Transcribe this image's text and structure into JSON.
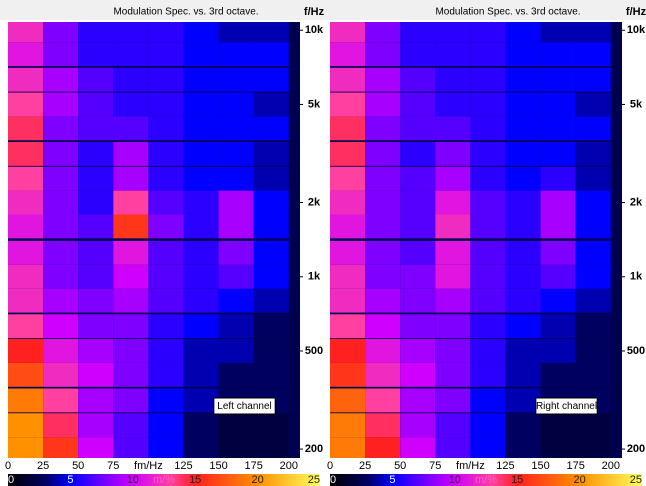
{
  "chart_data": [
    {
      "type": "heatmap",
      "title": "Modulation Spec. vs. 3rd octave.",
      "ylabel": "f/Hz",
      "xlabel": "fm/Hz",
      "annotation": "Left channel",
      "xlim": [
        0,
        208
      ],
      "xticks": [
        0,
        25,
        50,
        75,
        125,
        150,
        175,
        200
      ],
      "ylim": [
        184,
        10800
      ],
      "yscale": "log",
      "yticks": [
        {
          "value": 10000,
          "label": "10k"
        },
        {
          "value": 5000,
          "label": "5k"
        },
        {
          "value": 2000,
          "label": "2k"
        },
        {
          "value": 1000,
          "label": "1k"
        },
        {
          "value": 500,
          "label": "500"
        },
        {
          "value": 200,
          "label": "200"
        }
      ],
      "clim": [
        0,
        25
      ],
      "cticks": [
        0,
        5,
        10,
        15,
        20,
        25
      ],
      "clabel": "m/%",
      "x": [
        12.5,
        37.5,
        62.5,
        87.5,
        112.5,
        137.5,
        162.5,
        187.5
      ],
      "y": [
        200,
        250,
        315,
        400,
        500,
        630,
        800,
        1000,
        1250,
        1600,
        2000,
        2500,
        3150,
        4000,
        5000,
        6300,
        8000,
        10000
      ],
      "z": [
        [
          20,
          16,
          10,
          7,
          5,
          3,
          2,
          2
        ],
        [
          20,
          14,
          9,
          7,
          5,
          3,
          2,
          2
        ],
        [
          19,
          13,
          9,
          8,
          5,
          4,
          3,
          3
        ],
        [
          17,
          12,
          10,
          8,
          6,
          4,
          3,
          3
        ],
        [
          15,
          11,
          9,
          8,
          6,
          4,
          4,
          3
        ],
        [
          13,
          10,
          8,
          8,
          6,
          5,
          4,
          3
        ],
        [
          12,
          9,
          8,
          9,
          7,
          6,
          5,
          4
        ],
        [
          12,
          8,
          7,
          10,
          7,
          6,
          7,
          5
        ],
        [
          11,
          8,
          7,
          11,
          7,
          6,
          8,
          5
        ],
        [
          11,
          8,
          7,
          16,
          8,
          6,
          9,
          5
        ],
        [
          12,
          8,
          6,
          13,
          7,
          6,
          9,
          5
        ],
        [
          13,
          8,
          6,
          9,
          6,
          5,
          5,
          4
        ],
        [
          14,
          8,
          6,
          9,
          6,
          5,
          5,
          4
        ],
        [
          14,
          8,
          7,
          7,
          6,
          5,
          5,
          5
        ],
        [
          13,
          9,
          7,
          6,
          6,
          5,
          5,
          4
        ],
        [
          12,
          9,
          7,
          6,
          6,
          5,
          5,
          5
        ],
        [
          11,
          8,
          6,
          6,
          6,
          5,
          5,
          5
        ],
        [
          12,
          8,
          6,
          6,
          6,
          5,
          4,
          4
        ]
      ]
    },
    {
      "type": "heatmap",
      "title": "Modulation Spec. vs. 3rd octave.",
      "ylabel": "f/Hz",
      "xlabel": "fm/Hz",
      "annotation": "Right channel",
      "xlim": [
        0,
        208
      ],
      "xticks": [
        0,
        25,
        50,
        75,
        125,
        150,
        175,
        200
      ],
      "ylim": [
        184,
        10800
      ],
      "yscale": "log",
      "yticks": [
        {
          "value": 10000,
          "label": "10k"
        },
        {
          "value": 5000,
          "label": "5k"
        },
        {
          "value": 2000,
          "label": "2k"
        },
        {
          "value": 1000,
          "label": "1k"
        },
        {
          "value": 500,
          "label": "500"
        },
        {
          "value": 200,
          "label": "200"
        }
      ],
      "clim": [
        0,
        25
      ],
      "cticks": [
        0,
        5,
        10,
        15,
        20,
        25
      ],
      "clabel": "m/%",
      "x": [
        12.5,
        37.5,
        62.5,
        87.5,
        112.5,
        137.5,
        162.5,
        187.5
      ],
      "y": [
        200,
        250,
        315,
        400,
        500,
        630,
        800,
        1000,
        1250,
        1600,
        2000,
        2500,
        3150,
        4000,
        5000,
        6300,
        8000,
        10000
      ],
      "z": [
        [
          19,
          15,
          10,
          7,
          5,
          3,
          2,
          2
        ],
        [
          19,
          14,
          9,
          7,
          5,
          3,
          2,
          2
        ],
        [
          18,
          13,
          9,
          8,
          5,
          4,
          3,
          3
        ],
        [
          16,
          12,
          10,
          8,
          6,
          4,
          3,
          3
        ],
        [
          15,
          11,
          9,
          8,
          6,
          4,
          4,
          3
        ],
        [
          13,
          10,
          8,
          8,
          6,
          5,
          4,
          3
        ],
        [
          12,
          9,
          8,
          9,
          7,
          6,
          5,
          4
        ],
        [
          12,
          8,
          8,
          11,
          7,
          6,
          7,
          5
        ],
        [
          11,
          8,
          7,
          11,
          7,
          6,
          8,
          5
        ],
        [
          11,
          8,
          7,
          12,
          7,
          6,
          9,
          5
        ],
        [
          12,
          8,
          7,
          11,
          7,
          6,
          9,
          5
        ],
        [
          13,
          8,
          7,
          9,
          6,
          5,
          6,
          4
        ],
        [
          14,
          8,
          6,
          8,
          6,
          5,
          5,
          4
        ],
        [
          14,
          8,
          7,
          7,
          6,
          5,
          5,
          5
        ],
        [
          13,
          9,
          7,
          6,
          6,
          5,
          5,
          4
        ],
        [
          12,
          9,
          7,
          6,
          6,
          5,
          5,
          5
        ],
        [
          11,
          8,
          6,
          6,
          6,
          5,
          5,
          5
        ],
        [
          12,
          8,
          6,
          6,
          6,
          5,
          4,
          4
        ]
      ]
    }
  ]
}
